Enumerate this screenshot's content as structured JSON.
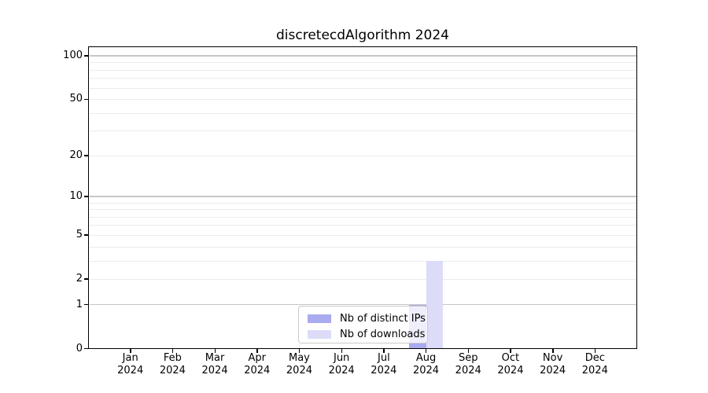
{
  "figure": {
    "title": "discretecdAlgorithm 2024"
  },
  "chart_data": {
    "type": "bar",
    "title": "discretecdAlgorithm 2024",
    "categories": [
      "Jan",
      "Feb",
      "Mar",
      "Apr",
      "May",
      "Jun",
      "Jul",
      "Aug",
      "Sep",
      "Oct",
      "Nov",
      "Dec"
    ],
    "year_label": "2024",
    "series": [
      {
        "name": "Nb of distinct IPs",
        "color": "#aaaaee",
        "values": [
          0,
          0,
          0,
          0,
          0,
          0,
          0,
          1,
          0,
          0,
          0,
          0
        ]
      },
      {
        "name": "Nb of downloads",
        "color": "#dcdcf8",
        "values": [
          0,
          0,
          0,
          0,
          0,
          0,
          0,
          3,
          0,
          0,
          0,
          0
        ]
      }
    ],
    "xlabel": "",
    "ylabel": "",
    "y_scale": "log10(1+y)",
    "y_ticks": [
      0,
      1,
      2,
      5,
      10,
      20,
      50,
      100
    ],
    "y_minor_grid": [
      2,
      3,
      4,
      5,
      6,
      7,
      8,
      9,
      20,
      30,
      40,
      50,
      60,
      70,
      80,
      90
    ],
    "y_major_grid": [
      1,
      10,
      100
    ],
    "ylim": [
      0,
      116
    ],
    "grid": true,
    "legend_position": "lower center",
    "frame_color": "#000000",
    "background_color": "#ffffff"
  }
}
